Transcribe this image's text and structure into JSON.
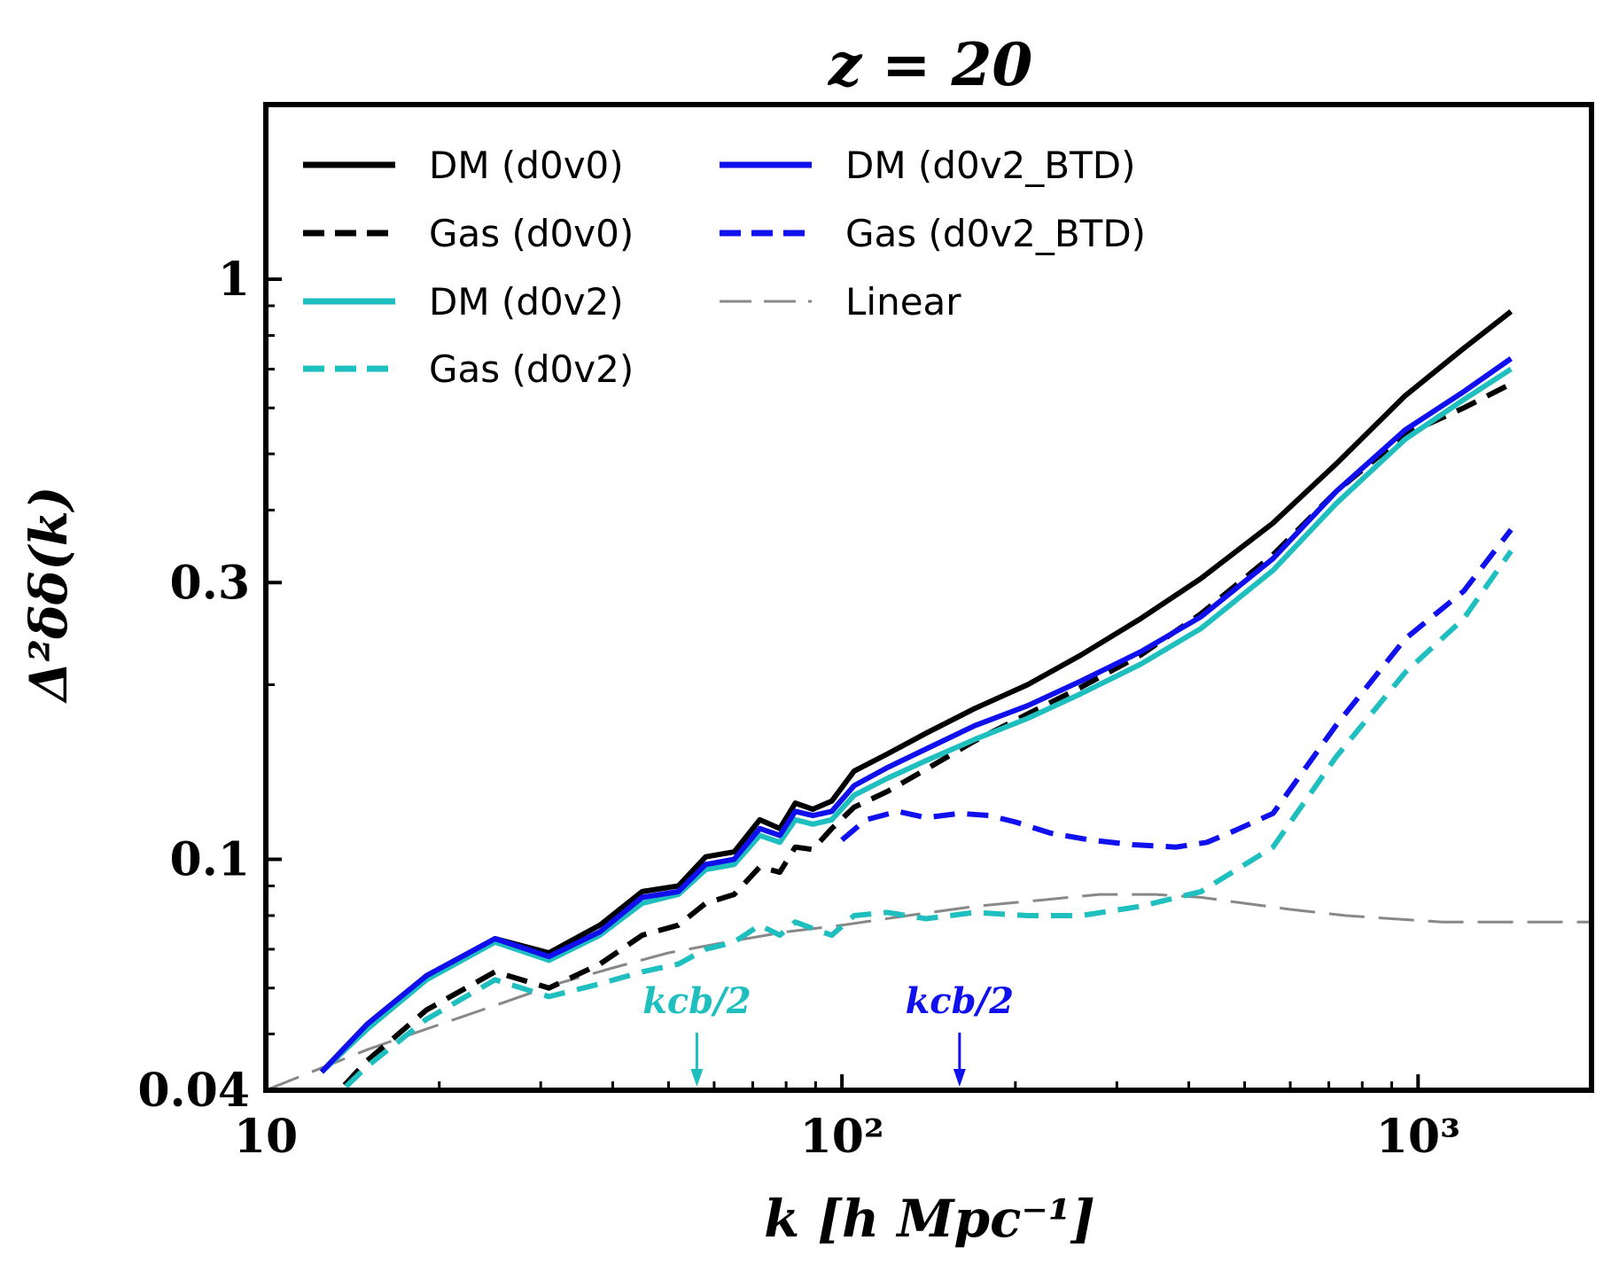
{
  "chart_data": {
    "type": "line",
    "title": "z = 20",
    "xlabel": "k [h Mpc⁻¹]",
    "ylabel": "Δ²δδ(k)",
    "xscale": "log",
    "yscale": "log",
    "xlim": [
      10,
      2000
    ],
    "ylim": [
      0.04,
      2.0
    ],
    "grid": false,
    "legend_position": "top-left",
    "x_tick_labels": [
      {
        "value": 10,
        "label": "10"
      },
      {
        "value": 100,
        "label": "10²"
      },
      {
        "value": 1000,
        "label": "10³"
      }
    ],
    "y_tick_labels": [
      {
        "value": 0.04,
        "label": "0.04"
      },
      {
        "value": 0.1,
        "label": "0.1"
      },
      {
        "value": 0.3,
        "label": "0.3"
      },
      {
        "value": 1,
        "label": "1"
      }
    ],
    "series": [
      {
        "name": "DM (d0v0)",
        "color": "#000000",
        "style": "solid",
        "x": [
          12.5,
          15,
          19,
          25,
          31,
          38,
          45,
          52,
          58,
          65,
          72,
          78,
          83,
          89,
          96,
          105,
          120,
          140,
          170,
          210,
          260,
          330,
          420,
          560,
          720,
          950,
          1200,
          1450
        ],
        "y": [
          0.043,
          0.052,
          0.063,
          0.073,
          0.069,
          0.077,
          0.088,
          0.09,
          0.101,
          0.103,
          0.117,
          0.113,
          0.125,
          0.122,
          0.126,
          0.142,
          0.152,
          0.165,
          0.182,
          0.2,
          0.225,
          0.26,
          0.305,
          0.38,
          0.48,
          0.63,
          0.76,
          0.88
        ]
      },
      {
        "name": "Gas (d0v0)",
        "color": "#000000",
        "style": "dashed",
        "x": [
          12.5,
          15,
          19,
          25,
          31,
          38,
          45,
          52,
          58,
          65,
          72,
          78,
          83,
          89,
          96,
          105,
          120,
          140,
          170,
          210,
          260,
          330,
          420,
          560,
          720,
          950,
          1200,
          1450
        ],
        "y": [
          0.037,
          0.045,
          0.055,
          0.064,
          0.06,
          0.066,
          0.074,
          0.077,
          0.084,
          0.087,
          0.097,
          0.095,
          0.105,
          0.104,
          0.113,
          0.123,
          0.131,
          0.143,
          0.16,
          0.178,
          0.198,
          0.225,
          0.265,
          0.335,
          0.43,
          0.54,
          0.6,
          0.66
        ]
      },
      {
        "name": "DM (d0v2)",
        "color": "#1fbfbf",
        "style": "solid",
        "x": [
          12.5,
          15,
          19,
          25,
          31,
          38,
          45,
          52,
          58,
          65,
          72,
          78,
          83,
          89,
          96,
          105,
          120,
          140,
          170,
          210,
          260,
          330,
          420,
          560,
          720,
          950,
          1200,
          1450
        ],
        "y": [
          0.043,
          0.051,
          0.062,
          0.072,
          0.067,
          0.074,
          0.084,
          0.087,
          0.096,
          0.098,
          0.11,
          0.107,
          0.117,
          0.115,
          0.117,
          0.129,
          0.138,
          0.148,
          0.161,
          0.175,
          0.193,
          0.217,
          0.25,
          0.315,
          0.41,
          0.53,
          0.62,
          0.7
        ]
      },
      {
        "name": "Gas (d0v2)",
        "color": "#1fbfbf",
        "style": "dashed",
        "x": [
          12.5,
          15,
          19,
          25,
          31,
          38,
          45,
          52,
          58,
          65,
          72,
          78,
          83,
          89,
          96,
          105,
          120,
          140,
          170,
          210,
          260,
          330,
          420,
          560,
          720,
          950,
          1200,
          1450
        ],
        "y": [
          0.037,
          0.044,
          0.053,
          0.062,
          0.058,
          0.061,
          0.064,
          0.066,
          0.07,
          0.072,
          0.077,
          0.074,
          0.078,
          0.076,
          0.074,
          0.08,
          0.081,
          0.079,
          0.081,
          0.08,
          0.08,
          0.083,
          0.088,
          0.105,
          0.15,
          0.21,
          0.26,
          0.34
        ]
      },
      {
        "name": "DM (d0v2_BTD)",
        "color": "#1010ee",
        "style": "solid",
        "x": [
          12.5,
          15,
          19,
          25,
          31,
          38,
          45,
          52,
          58,
          65,
          72,
          78,
          83,
          89,
          96,
          105,
          120,
          140,
          170,
          210,
          260,
          330,
          420,
          560,
          720,
          950,
          1200,
          1450
        ],
        "y": [
          0.043,
          0.052,
          0.063,
          0.073,
          0.068,
          0.075,
          0.086,
          0.088,
          0.098,
          0.1,
          0.113,
          0.11,
          0.121,
          0.119,
          0.121,
          0.134,
          0.144,
          0.155,
          0.17,
          0.184,
          0.203,
          0.228,
          0.262,
          0.33,
          0.43,
          0.55,
          0.64,
          0.73
        ]
      },
      {
        "name": "Gas (d0v2_BTD)",
        "color": "#1010ee",
        "style": "dashed",
        "x": [
          100,
          110,
          125,
          140,
          160,
          180,
          200,
          230,
          270,
          320,
          380,
          430,
          480,
          560,
          720,
          950,
          1200,
          1450
        ],
        "y": [
          0.108,
          0.117,
          0.121,
          0.118,
          0.12,
          0.119,
          0.116,
          0.111,
          0.108,
          0.106,
          0.105,
          0.107,
          0.112,
          0.12,
          0.17,
          0.24,
          0.29,
          0.37
        ]
      },
      {
        "name": "Linear",
        "color": "#888888",
        "style": "longdash",
        "x": [
          10,
          12,
          15,
          19,
          25,
          32,
          40,
          50,
          63,
          80,
          100,
          130,
          170,
          220,
          280,
          350,
          420,
          500,
          600,
          750,
          900,
          1100,
          1400,
          1700,
          2000
        ],
        "y": [
          0.04,
          0.043,
          0.047,
          0.051,
          0.056,
          0.061,
          0.065,
          0.069,
          0.072,
          0.075,
          0.077,
          0.08,
          0.083,
          0.085,
          0.087,
          0.087,
          0.086,
          0.084,
          0.082,
          0.08,
          0.079,
          0.078,
          0.078,
          0.078,
          0.078
        ]
      }
    ],
    "annotations": [
      {
        "text": "kcb/2",
        "x": 56,
        "color": "#1fbfbf",
        "type": "arrow-down"
      },
      {
        "text": "kcb/2",
        "x": 160,
        "color": "#1010ee",
        "type": "arrow-down"
      }
    ]
  }
}
